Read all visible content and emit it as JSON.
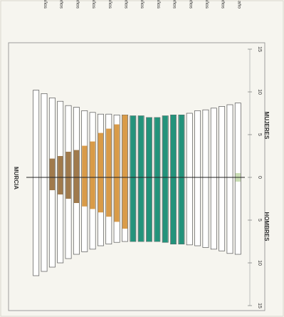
{
  "chart_data": {
    "type": "bar",
    "orientation": "rotated-90-clockwise",
    "title": "MURCIA",
    "left_label": "HOMBRES",
    "right_label": "MUJERES",
    "axis_ticks": [
      "15",
      "10",
      "5",
      "0",
      "5",
      "10",
      "15"
    ],
    "axis_tick_values": [
      -15,
      -10,
      -5,
      0,
      5,
      10,
      15
    ],
    "xlim": [
      -15,
      15
    ],
    "age_labels": [
      "24 años",
      "22 años",
      "20 años",
      "18 años",
      "16 años",
      "14 años",
      "12 años",
      "10 años",
      "8 años",
      "6 años",
      "4 años",
      "2 años",
      "< 1 año"
    ],
    "age_label_ages": [
      24,
      22,
      20,
      18,
      16,
      14,
      12,
      10,
      8,
      6,
      4,
      2,
      0
    ],
    "ages": [
      25,
      24,
      23,
      22,
      21,
      20,
      19,
      18,
      17,
      16,
      15,
      14,
      13,
      12,
      11,
      10,
      9,
      8,
      7,
      6,
      5,
      4,
      3,
      2,
      1,
      0
    ],
    "series": [
      {
        "name": "HOMBRES",
        "outline": [
          11.5,
          11.0,
          10.5,
          10.0,
          9.5,
          9.0,
          8.7,
          8.4,
          8.0,
          7.8,
          7.6,
          7.5,
          7.5,
          7.5,
          7.5,
          7.5,
          7.6,
          7.8,
          7.8,
          7.9,
          8.0,
          8.2,
          8.4,
          8.6,
          8.9,
          9.0
        ],
        "filled": [
          0,
          0,
          1.5,
          2.0,
          2.5,
          3.0,
          3.4,
          3.7,
          4.1,
          4.6,
          5.2,
          6.0,
          7.5,
          7.5,
          7.5,
          7.5,
          7.6,
          7.8,
          7.8,
          0,
          0,
          0,
          0,
          0,
          0,
          0.5
        ]
      },
      {
        "name": "MUJERES",
        "outline": [
          10.2,
          9.8,
          9.3,
          8.9,
          8.4,
          8.2,
          7.8,
          7.6,
          7.4,
          7.4,
          7.3,
          7.3,
          7.2,
          7.2,
          7.0,
          7.0,
          7.2,
          7.3,
          7.3,
          7.5,
          7.8,
          7.9,
          8.1,
          8.3,
          8.5,
          8.7
        ],
        "filled": [
          0,
          0,
          2.2,
          2.5,
          3.0,
          3.2,
          3.7,
          4.2,
          5.2,
          5.7,
          6.2,
          7.3,
          7.2,
          7.2,
          7.0,
          7.0,
          7.2,
          7.3,
          7.3,
          0,
          0,
          0,
          0,
          0,
          0,
          0.5
        ]
      }
    ],
    "fill_colors": [
      {
        "ages": [
          20,
          25
        ],
        "color": "#a07a4c"
      },
      {
        "ages": [
          14,
          19
        ],
        "color": "#d99b48"
      },
      {
        "ages": [
          7,
          13
        ],
        "color": "#23937b"
      },
      {
        "ages": [
          0,
          6
        ],
        "color": "#c9ddb4"
      }
    ],
    "outline_color": "#555555",
    "zero_line_color": "#222222"
  }
}
